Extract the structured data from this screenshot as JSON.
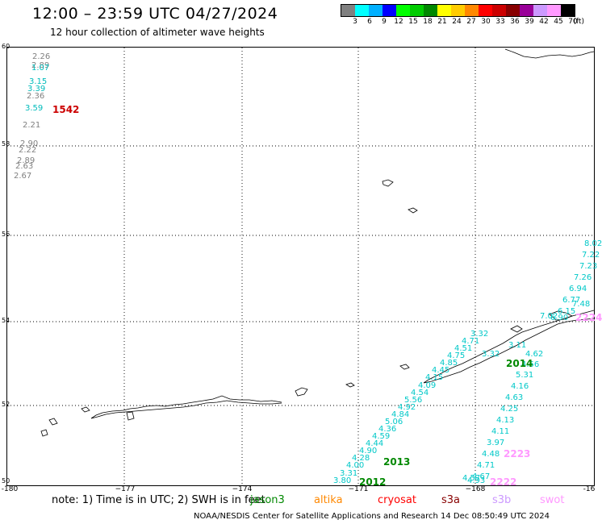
{
  "header": {
    "title": "12:00 – 23:59 UTC 04/27/2024",
    "subtitle": "12 hour collection of altimeter wave heights"
  },
  "scale": {
    "colors": [
      "#808080",
      "#00ffff",
      "#00b0ff",
      "#0000ff",
      "#00ff00",
      "#00cc00",
      "#008800",
      "#ffff00",
      "#ffcc00",
      "#ff8800",
      "#ff0000",
      "#cc0000",
      "#880000",
      "#990099",
      "#cc99ff",
      "#ff99ff",
      "#000000"
    ],
    "labels": [
      "3",
      "6",
      "9",
      "12",
      "15",
      "18",
      "21",
      "24",
      "27",
      "30",
      "33",
      "36",
      "39",
      "42",
      "45",
      "70",
      "(ft)"
    ]
  },
  "axes": {
    "lat_labels": [
      "60",
      "58",
      "56",
      "54",
      "52",
      "50"
    ],
    "lon_labels": [
      "-180",
      "−177",
      "−174",
      "−171",
      "−168",
      "-16"
    ]
  },
  "satellite_legend": {
    "note": "note: 1) Time is in UTC; 2) SWH is in feet",
    "items": [
      {
        "name": "jason3",
        "color": "#008800"
      },
      {
        "name": "altika",
        "color": "#ff8800"
      },
      {
        "name": "cryosat",
        "color": "#ff0000"
      },
      {
        "name": "s3a",
        "color": "#880000"
      },
      {
        "name": "s3b",
        "color": "#cc99ff"
      },
      {
        "name": "swot",
        "color": "#ff99ff"
      }
    ]
  },
  "footer": "NOAA/NESDIS Center for Satellite Applications and Research    14 Dec 08:50:49 UTC 2024",
  "pass_labels": [
    {
      "text": "1542",
      "color": "#cc0000"
    },
    {
      "text": "2014",
      "color": "#008800"
    },
    {
      "text": "2013",
      "color": "#008800"
    },
    {
      "text": "2012",
      "color": "#008800"
    },
    {
      "text": "2223",
      "color": "#ff99ff"
    },
    {
      "text": "2222",
      "color": "#ff99ff"
    },
    {
      "text": "2224",
      "color": "#ff99ff"
    }
  ],
  "wave_heights": {
    "track_west": [
      {
        "v": "2.26",
        "c": "#808080"
      },
      {
        "v": "2.89",
        "c": "#808080"
      },
      {
        "v": "1.07",
        "c": "#00bbbb"
      },
      {
        "v": "3.15",
        "c": "#00bbbb"
      },
      {
        "v": "3.39",
        "c": "#00bbbb"
      },
      {
        "v": "2.36",
        "c": "#808080"
      },
      {
        "v": "3.59",
        "c": "#00bbbb"
      },
      {
        "v": "2.21",
        "c": "#808080"
      },
      {
        "v": "2.90",
        "c": "#808080"
      },
      {
        "v": "2.22",
        "c": "#808080"
      },
      {
        "v": "2.89",
        "c": "#808080"
      },
      {
        "v": "2.63",
        "c": "#808080"
      },
      {
        "v": "2.67",
        "c": "#808080"
      }
    ],
    "track_2013": [
      "3.80",
      "3.31",
      "4.00",
      "4.28",
      "4.90",
      "4.44",
      "4.59",
      "4.36",
      "5.06",
      "4.84",
      "4.92",
      "5.56",
      "4.54",
      "4.09",
      "4.15",
      "4.45",
      "4.85",
      "4.75",
      "4.51",
      "4.71",
      "3.32",
      "3.32"
    ],
    "track_2223": [
      "8.02",
      "7.22",
      "7.23",
      "7.26",
      "6.94",
      "6.77",
      "7.48",
      "6.15",
      "6.90",
      "7.02",
      "3.11",
      "4.62",
      "4.56",
      "5.31",
      "4.16",
      "4.63",
      "4.25",
      "4.13",
      "4.11",
      "3.97",
      "4.48",
      "4.71",
      "4.67",
      "4.93",
      "4.57"
    ]
  }
}
